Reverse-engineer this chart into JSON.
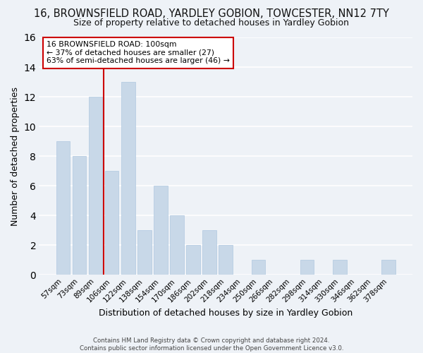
{
  "title": "16, BROWNSFIELD ROAD, YARDLEY GOBION, TOWCESTER, NN12 7TY",
  "subtitle": "Size of property relative to detached houses in Yardley Gobion",
  "xlabel": "Distribution of detached houses by size in Yardley Gobion",
  "ylabel": "Number of detached properties",
  "categories": [
    "57sqm",
    "73sqm",
    "89sqm",
    "106sqm",
    "122sqm",
    "138sqm",
    "154sqm",
    "170sqm",
    "186sqm",
    "202sqm",
    "218sqm",
    "234sqm",
    "250sqm",
    "266sqm",
    "282sqm",
    "298sqm",
    "314sqm",
    "330sqm",
    "346sqm",
    "362sqm",
    "378sqm"
  ],
  "values": [
    9,
    8,
    12,
    7,
    13,
    3,
    6,
    4,
    2,
    3,
    2,
    0,
    1,
    0,
    0,
    1,
    0,
    1,
    0,
    0,
    1
  ],
  "bar_color": "#c8d8e8",
  "bar_edge_color": "#b0c8e0",
  "highlight_bar_index": 3,
  "highlight_line_color": "#cc0000",
  "annotation_line1": "16 BROWNSFIELD ROAD: 100sqm",
  "annotation_line2": "← 37% of detached houses are smaller (27)",
  "annotation_line3": "63% of semi-detached houses are larger (46) →",
  "annotation_box_color": "#ffffff",
  "annotation_box_edge_color": "#cc0000",
  "ylim": [
    0,
    16
  ],
  "yticks": [
    0,
    2,
    4,
    6,
    8,
    10,
    12,
    14,
    16
  ],
  "background_color": "#eef2f7",
  "plot_bg_color": "#eef2f7",
  "footer_line1": "Contains HM Land Registry data © Crown copyright and database right 2024.",
  "footer_line2": "Contains public sector information licensed under the Open Government Licence v3.0.",
  "title_fontsize": 10.5,
  "subtitle_fontsize": 9,
  "grid_color": "#ffffff",
  "tick_fontsize": 7.5,
  "axis_label_fontsize": 9
}
